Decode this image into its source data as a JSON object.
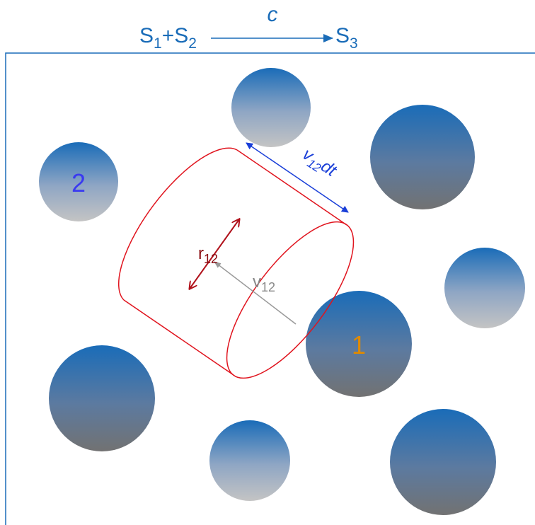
{
  "equation": {
    "reactant_1": "S",
    "reactant_1_sub": "1",
    "plus": "+",
    "reactant_2": "S",
    "reactant_2_sub": "2",
    "rate": "c",
    "product": "S",
    "product_sub": "3"
  },
  "labels": {
    "species_2": "2",
    "species_1": "1",
    "radius": {
      "symbol": "r",
      "sub": "12"
    },
    "velocity": {
      "symbol": "v",
      "sub": "12"
    },
    "path": {
      "symbol": "v",
      "sub": "12",
      "suffix": "dt"
    }
  }
}
